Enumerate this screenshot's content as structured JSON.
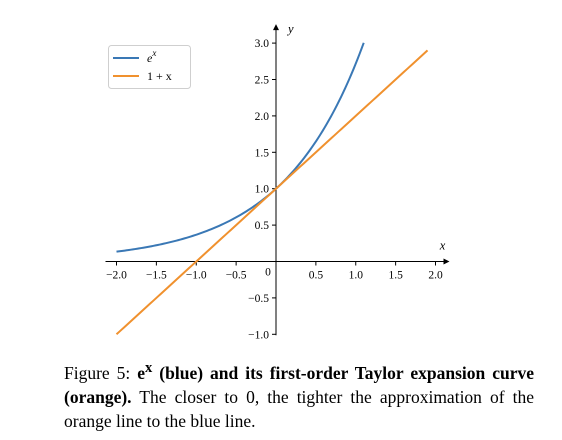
{
  "chart_data": {
    "type": "line",
    "title": "",
    "xlabel": "x",
    "ylabel": "y",
    "xlim": [
      -2.0,
      2.0
    ],
    "ylim": [
      -1.0,
      3.0
    ],
    "x_ticks": [
      -2.0,
      -1.5,
      -1.0,
      -0.5,
      0.5,
      1.0,
      1.5,
      2.0
    ],
    "x_tick_labels": [
      "−2.0",
      "−1.5",
      "−1.0",
      "−0.5",
      "0.5",
      "1.0",
      "1.5",
      "2.0"
    ],
    "y_ticks": [
      -1.0,
      -0.5,
      0.5,
      1.0,
      1.5,
      2.0,
      2.5,
      3.0
    ],
    "y_tick_labels": [
      "−1.0",
      "−0.5",
      "0.5",
      "1.0",
      "1.5",
      "2.0",
      "2.5",
      "3.0"
    ],
    "origin_label": "0",
    "grid": false,
    "legend_position": "top-left",
    "series": [
      {
        "name": "e^x",
        "color": "#3a78b5",
        "function": "exp",
        "x_range": [
          -2.0,
          1.1
        ],
        "x": [
          -2.0,
          -1.5,
          -1.0,
          -0.5,
          0.0,
          0.5,
          1.0,
          1.1
        ],
        "y": [
          0.135,
          0.223,
          0.368,
          0.607,
          1.0,
          1.649,
          2.718,
          3.004
        ]
      },
      {
        "name": "1 + x",
        "color": "#f0912e",
        "function": "linear",
        "x_range": [
          -2.0,
          1.9
        ],
        "x": [
          -2.0,
          -1.0,
          0.0,
          1.0,
          1.9
        ],
        "y": [
          -1.0,
          0.0,
          1.0,
          2.0,
          2.9
        ]
      }
    ]
  },
  "caption": {
    "prefix": "Figure 5: ",
    "bold_part1": "e",
    "bold_sup": "x",
    "bold_part2": " (blue) and its first-order Taylor expansion curve (orange).",
    "rest": " The closer to 0, the tighter the approximation of the orange line to the blue line."
  }
}
